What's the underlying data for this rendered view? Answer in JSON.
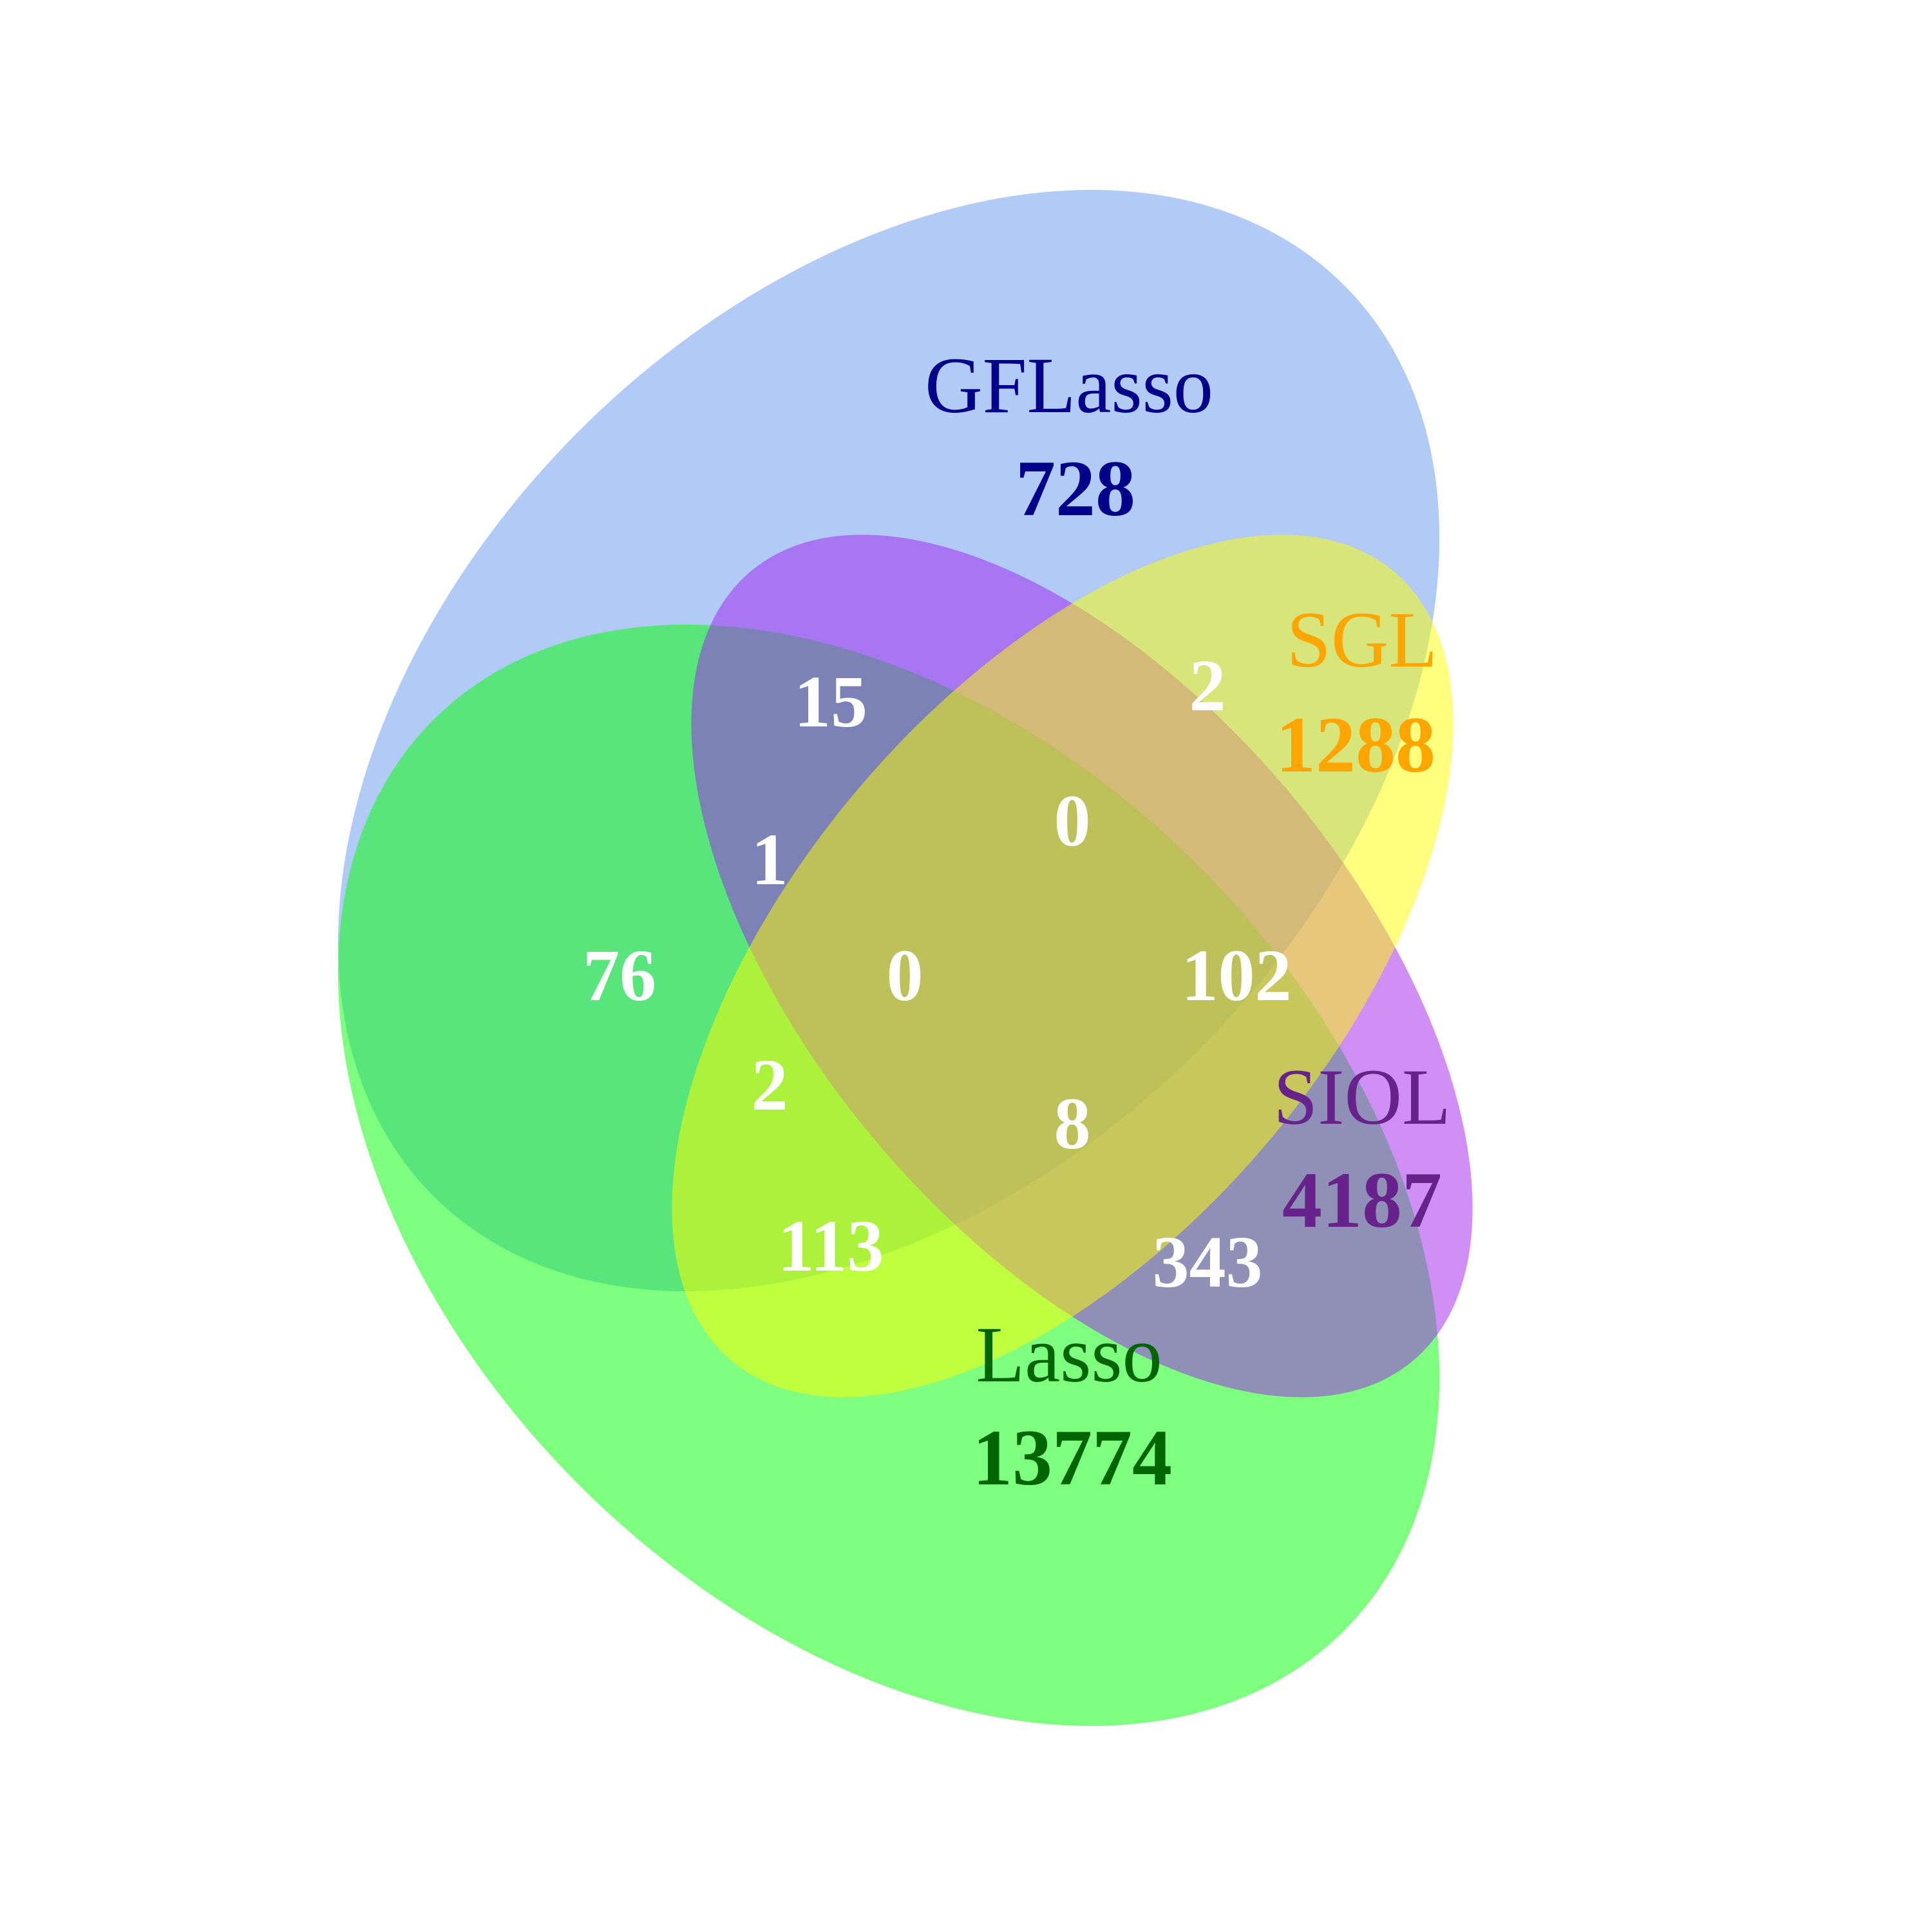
{
  "sets": {
    "gflasso": {
      "name": "GFLasso",
      "total": "728",
      "fill": "#6495ed",
      "label_color": "#00008b"
    },
    "sgl": {
      "name": "SGL",
      "total": "1288",
      "fill": "#ffff00",
      "label_color": "#ffa500"
    },
    "siol": {
      "name": "SIOL",
      "total": "4187",
      "fill": "#a020f0",
      "label_color": "#68228b"
    },
    "lasso": {
      "name": "Lasso",
      "total": "13774",
      "fill": "#00ff00",
      "label_color": "#006400"
    }
  },
  "regions": {
    "gflasso_siol": "15",
    "gflasso_sgl": "2",
    "gflasso_sgl_siol": "0",
    "gflasso_siol_lasso": "1",
    "gflasso_lasso": "76",
    "all_four": "0",
    "gflasso_sgl_lasso": "102",
    "gflasso_sgl_lasso_b": "2",
    "sgl_siol_lasso": "8",
    "siol_lasso": "113",
    "sgl_lasso": "343"
  }
}
